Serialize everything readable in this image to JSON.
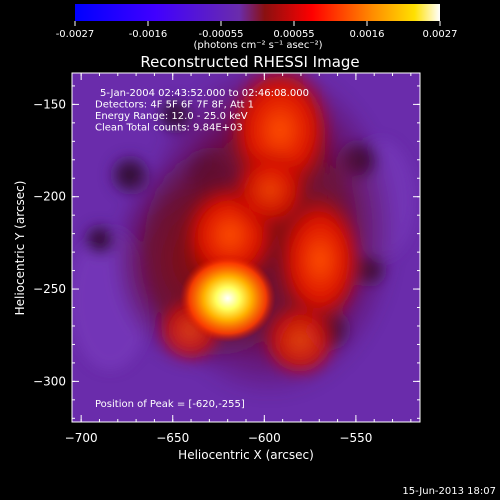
{
  "chart_data": {
    "type": "heatmap",
    "title": "Reconstructed RHESSI Image",
    "xlabel": "Heliocentric X (arcsec)",
    "ylabel": "Heliocentric Y (arcsec)",
    "xlim": [
      -705,
      -515
    ],
    "ylim": [
      -322,
      -133
    ],
    "xticks": [
      -700,
      -650,
      -600,
      -550
    ],
    "yticks": [
      -150,
      -200,
      -250,
      -300
    ],
    "colorbar": {
      "ticks": [
        "-0.0027",
        "-0.0016",
        "-0.00055",
        "0.00055",
        "0.0016",
        "0.0027"
      ],
      "range": [
        -0.0027,
        0.0027
      ],
      "unit_label": "(photons cm⁻² s⁻¹ asec⁻²)",
      "colors": [
        "#0000ff",
        "#5500ff",
        "#ff0000",
        "#ff8000",
        "#ffff00",
        "#ffffff"
      ]
    },
    "annotations": [
      "5-Jan-2004 02:43:52.000 to 02:46:08.000",
      "Detectors: 4F 5F 6F 7F 8F, Att 1",
      "Energy Range: 12.0 - 25.0 keV",
      "Clean    Total counts: 9.84E+03"
    ],
    "peak_label": "Position of Peak = [-620,-255]",
    "peak": {
      "x": -620,
      "y": -255
    },
    "background_color": "#6a2cab"
  },
  "footer": {
    "date": "15-Jun-2013 18:07"
  }
}
